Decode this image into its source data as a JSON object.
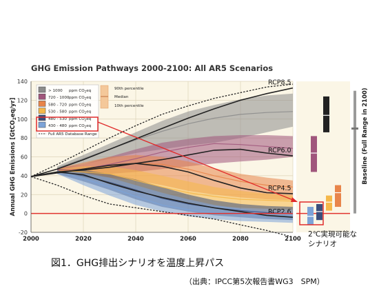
{
  "chart_data": {
    "type": "area",
    "title": "GHG Emission Pathways 2000-2100: All AR5 Scenarios",
    "ylabel": "Annual GHG Emissions [GtCO2eq/yr]",
    "ylabel_parts": {
      "main": "Annual GHG Emissions [GtCO",
      "sub": "2",
      "tail": "eq/yr]"
    },
    "xlim": [
      2000,
      2100
    ],
    "ylim": [
      -20,
      140
    ],
    "x_ticks": [
      2000,
      2020,
      2040,
      2060,
      2080,
      2100
    ],
    "y_ticks": [
      -20,
      0,
      20,
      40,
      60,
      80,
      100,
      120,
      140
    ],
    "grid": true,
    "zero_line_color": "#e0322e",
    "legend": {
      "position": "top-left",
      "unit_prefix": "ppm CO",
      "unit_sub": "2",
      "unit_suffix": "eq",
      "entries": [
        {
          "range_low": "> 1000",
          "range_high": "",
          "color": "#8c8c8c"
        },
        {
          "range_low": "720",
          "range_high": "1000",
          "color": "#a0567c"
        },
        {
          "range_low": "580",
          "range_high": "720",
          "color": "#e8854a"
        },
        {
          "range_low": "530",
          "range_high": "580",
          "color": "#f5b84a"
        },
        {
          "range_low": "480",
          "range_high": "530",
          "color": "#3b4f7c"
        },
        {
          "range_low": "430",
          "range_high": "480",
          "color": "#7ca3d8"
        }
      ],
      "full_range_label": "Full AR5 Database Range",
      "percentile_90": "90th percentile",
      "median": "Median",
      "percentile_10": "10th percentile"
    },
    "series": [
      {
        "name": "RCP8.5",
        "color": "#222222",
        "x": [
          2000,
          2010,
          2020,
          2030,
          2040,
          2050,
          2060,
          2070,
          2080,
          2090,
          2100
        ],
        "y": [
          39,
          47,
          57,
          68,
          79,
          90,
          101,
          111,
          120,
          127,
          133
        ]
      },
      {
        "name": "RCP6.0",
        "color": "#222222",
        "x": [
          2000,
          2010,
          2020,
          2030,
          2040,
          2050,
          2060,
          2070,
          2080,
          2090,
          2100
        ],
        "y": [
          39,
          44,
          46,
          49,
          53,
          57,
          62,
          67,
          68,
          64,
          61
        ]
      },
      {
        "name": "RCP4.5",
        "color": "#222222",
        "x": [
          2000,
          2010,
          2020,
          2030,
          2040,
          2050,
          2060,
          2070,
          2080,
          2090,
          2100
        ],
        "y": [
          39,
          43,
          47,
          51,
          53,
          50,
          44,
          35,
          27,
          22,
          21
        ]
      },
      {
        "name": "RCP2.6",
        "color": "#222222",
        "x": [
          2000,
          2010,
          2020,
          2030,
          2040,
          2050,
          2060,
          2070,
          2080,
          2090,
          2100
        ],
        "y": [
          39,
          44,
          41,
          32,
          24,
          17,
          11,
          6,
          2,
          -2,
          -4
        ]
      }
    ],
    "median_paths": [
      {
        "band": ">1000",
        "x": [
          2010,
          2020,
          2030,
          2040,
          2050,
          2060,
          2070,
          2080,
          2090,
          2100
        ],
        "y": [
          48,
          58,
          68,
          78,
          87,
          95,
          101,
          105,
          107,
          108
        ]
      },
      {
        "band": "720-1000",
        "x": [
          2010,
          2020,
          2030,
          2040,
          2050,
          2060,
          2070,
          2080,
          2090,
          2100
        ],
        "y": [
          46,
          47,
          52,
          58,
          65,
          70,
          74,
          73,
          71,
          69
        ]
      },
      {
        "band": "580-720",
        "x": [
          2010,
          2020,
          2030,
          2040,
          2050,
          2060,
          2070,
          2080,
          2090,
          2100
        ],
        "y": [
          45,
          47,
          49,
          53,
          52,
          47,
          40,
          34,
          30,
          28
        ]
      },
      {
        "band": "530-580",
        "x": [
          2010,
          2020,
          2030,
          2040,
          2050,
          2060,
          2070,
          2080,
          2090,
          2100
        ],
        "y": [
          45,
          44,
          42,
          35,
          28,
          22,
          18,
          15,
          14,
          13
        ]
      },
      {
        "band": "480-530",
        "x": [
          2010,
          2020,
          2030,
          2040,
          2050,
          2060,
          2070,
          2080,
          2090,
          2100
        ],
        "y": [
          45,
          40,
          33,
          25,
          16,
          10,
          6,
          3,
          1,
          0
        ]
      },
      {
        "band": "430-480",
        "x": [
          2010,
          2020,
          2030,
          2040,
          2050,
          2060,
          2070,
          2080,
          2090,
          2100
        ],
        "y": [
          45,
          37,
          28,
          18,
          9,
          4,
          1,
          -1,
          -2,
          -3
        ]
      }
    ],
    "bands": [
      {
        "name": "> 1000",
        "color": "#8c8c8c",
        "x": [
          2010,
          2020,
          2030,
          2040,
          2050,
          2060,
          2070,
          2080,
          2090,
          2100
        ],
        "low": [
          45,
          52,
          58,
          64,
          68,
          72,
          75,
          80,
          86,
          92
        ],
        "high": [
          50,
          62,
          74,
          86,
          98,
          108,
          115,
          121,
          125,
          127
        ]
      },
      {
        "name": "720 - 1000",
        "color": "#a0567c",
        "x": [
          2010,
          2020,
          2030,
          2040,
          2050,
          2060,
          2070,
          2080,
          2090,
          2100
        ],
        "low": [
          44,
          42,
          42,
          44,
          47,
          50,
          53,
          55,
          57,
          60
        ],
        "high": [
          48,
          52,
          60,
          68,
          75,
          79,
          82,
          83,
          83,
          82
        ]
      },
      {
        "name": "580 - 720",
        "color": "#e8854a",
        "x": [
          2010,
          2020,
          2030,
          2040,
          2050,
          2060,
          2070,
          2080,
          2090,
          2100
        ],
        "low": [
          43,
          41,
          38,
          35,
          30,
          24,
          20,
          17,
          15,
          14
        ],
        "high": [
          48,
          54,
          60,
          62,
          60,
          55,
          48,
          42,
          38,
          35
        ]
      },
      {
        "name": "530 - 580",
        "color": "#f5b84a",
        "x": [
          2010,
          2020,
          2030,
          2040,
          2050,
          2060,
          2070,
          2080,
          2090,
          2100
        ],
        "low": [
          43,
          38,
          32,
          24,
          17,
          11,
          8,
          6,
          5,
          4
        ],
        "high": [
          47,
          50,
          50,
          46,
          40,
          34,
          28,
          24,
          21,
          19
        ]
      },
      {
        "name": "480 - 530",
        "color": "#3b4f7c",
        "x": [
          2010,
          2020,
          2030,
          2040,
          2050,
          2060,
          2070,
          2080,
          2090,
          2100
        ],
        "low": [
          42,
          34,
          25,
          15,
          7,
          2,
          -2,
          -4,
          -6,
          -7
        ],
        "high": [
          47,
          46,
          42,
          36,
          28,
          20,
          14,
          10,
          8,
          7
        ]
      },
      {
        "name": "430 - 480",
        "color": "#7ca3d8",
        "x": [
          2010,
          2020,
          2030,
          2040,
          2050,
          2060,
          2070,
          2080,
          2090,
          2100
        ],
        "low": [
          42,
          30,
          19,
          9,
          2,
          -3,
          -6,
          -8,
          -9,
          -10
        ],
        "high": [
          46,
          43,
          38,
          30,
          22,
          15,
          9,
          5,
          2,
          1
        ]
      }
    ],
    "full_range": {
      "x": [
        2000,
        2010,
        2020,
        2030,
        2040,
        2050,
        2060,
        2070,
        2080,
        2090,
        2100
      ],
      "low": [
        39,
        30,
        19,
        10,
        6,
        2,
        -2,
        -6,
        -12,
        -18,
        -25
      ],
      "high": [
        39,
        52,
        66,
        80,
        93,
        105,
        114,
        122,
        128,
        134,
        137
      ]
    },
    "baseline": {
      "label": "Baseline (Full Range in 2100)",
      "whisker_low": 0,
      "whisker_high": 130,
      "median": 90,
      "color": "#9a9a9a",
      "bars": [
        {
          "band": ">1000",
          "low": 86,
          "high": 124,
          "median": 104,
          "color": "#222222"
        },
        {
          "band": "720-1000",
          "low": 44,
          "high": 82,
          "median": 64,
          "color": "#a0567c"
        },
        {
          "band": "430-480",
          "low": -12,
          "high": 7,
          "median": -3,
          "color": "#7ca3d8"
        },
        {
          "band": "480-530",
          "low": -7,
          "high": 10,
          "median": 2,
          "color": "#3b4f7c"
        },
        {
          "band": "530-580",
          "low": 3,
          "high": 19,
          "median": 12,
          "color": "#f5b84a"
        },
        {
          "band": "580-720",
          "low": 7,
          "high": 30,
          "median": 22,
          "color": "#e8854a"
        }
      ]
    },
    "annotations": [
      {
        "text": "2℃実現可能な",
        "color": "#111111"
      },
      {
        "text": "シナリオ",
        "color": "#111111"
      }
    ],
    "highlight_color": "#e02a2a"
  },
  "caption": "図1．GHG排出シナリオを温度上昇パス",
  "source": "（出典：IPCC第5次報告書WG3　SPM）"
}
